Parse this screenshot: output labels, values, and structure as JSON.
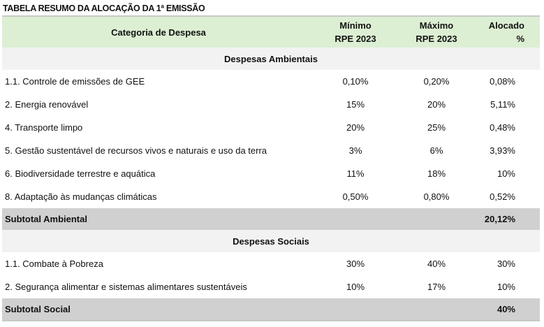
{
  "title": "TABELA RESUMO DA ALOCAÇÃO DA 1ª EMISSÃO",
  "header": {
    "category": "Categoria de Despesa",
    "min_l1": "Mínimo",
    "min_l2": "RPE 2023",
    "max_l1": "Máximo",
    "max_l2": "RPE 2023",
    "allocated": "Alocado %"
  },
  "sections": [
    {
      "name": "Despesas Ambientais",
      "rows": [
        {
          "category": "1.1. Controle de emissões de GEE",
          "min": "0,10%",
          "max": "0,20%",
          "allocated": "0,08%"
        },
        {
          "category": "2. Energia renovável",
          "min": "15%",
          "max": "20%",
          "allocated": "5,11%"
        },
        {
          "category": "4. Transporte limpo",
          "min": "20%",
          "max": "25%",
          "allocated": "0,48%"
        },
        {
          "category": "5. Gestão sustentável de recursos vivos e naturais e uso da terra",
          "min": "3%",
          "max": "6%",
          "allocated": "3,93%"
        },
        {
          "category": "6. Biodiversidade terrestre e aquática",
          "min": "11%",
          "max": "18%",
          "allocated": "10%"
        },
        {
          "category": "8. Adaptação às mudanças climáticas",
          "min": "0,50%",
          "max": "0,80%",
          "allocated": "0,52%"
        }
      ],
      "subtotal_label": "Subtotal Ambiental",
      "subtotal_value": "20,12%"
    },
    {
      "name": "Despesas Sociais",
      "rows": [
        {
          "category": "1.1. Combate à Pobreza",
          "min": "30%",
          "max": "40%",
          "allocated": "30%"
        },
        {
          "category": "2. Segurança alimentar e sistemas alimentares sustentáveis",
          "min": "10%",
          "max": "17%",
          "allocated": "10%"
        }
      ],
      "subtotal_label": "Subtotal Social",
      "subtotal_value": "40%"
    }
  ]
}
